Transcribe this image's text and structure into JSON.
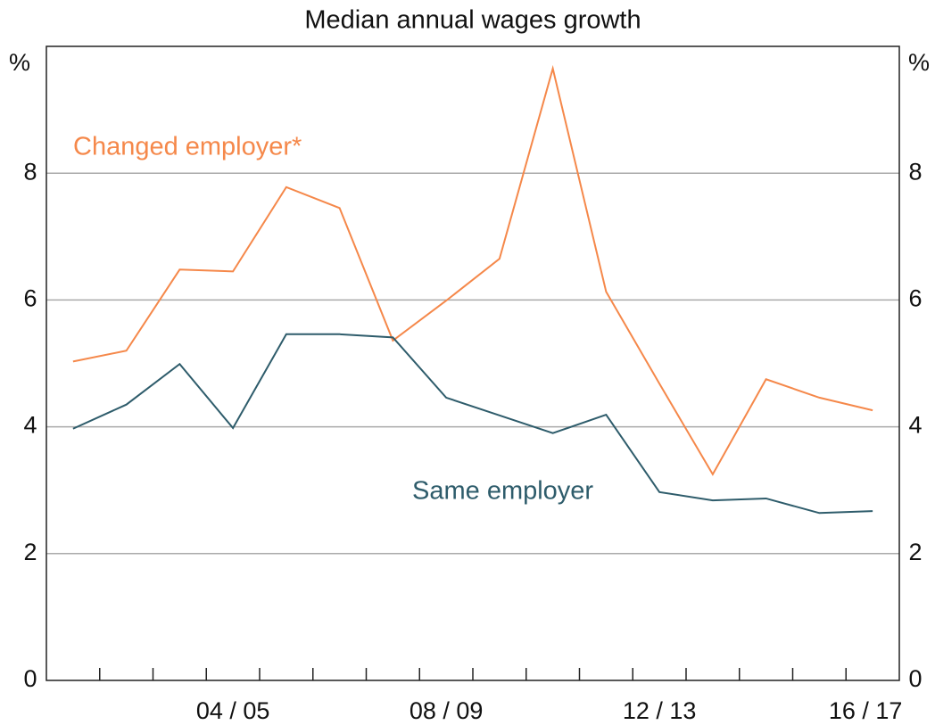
{
  "chart_data": {
    "type": "line",
    "title": "Median annual wages growth",
    "y_unit": "%",
    "categories": [
      null,
      null,
      null,
      "04 / 05",
      null,
      null,
      null,
      "08 / 09",
      null,
      null,
      null,
      "12 / 13",
      null,
      null,
      null,
      "16 / 17"
    ],
    "series": [
      {
        "name": "Changed employer*",
        "color": "#f5884a",
        "values": [
          5.03,
          5.2,
          6.48,
          6.45,
          7.78,
          7.45,
          5.36,
          5.99,
          6.65,
          9.65,
          6.13,
          4.68,
          3.25,
          4.75,
          4.46,
          4.26
        ]
      },
      {
        "name": "Same employer",
        "color": "#2e5c6b",
        "values": [
          3.97,
          4.35,
          4.99,
          3.98,
          5.46,
          5.46,
          5.41,
          4.46,
          4.18,
          3.9,
          4.19,
          2.97,
          2.84,
          2.87,
          2.64,
          2.67
        ]
      }
    ],
    "ylim": [
      0,
      10
    ],
    "yticks": [
      0,
      2,
      4,
      6,
      8
    ],
    "grid": true
  }
}
